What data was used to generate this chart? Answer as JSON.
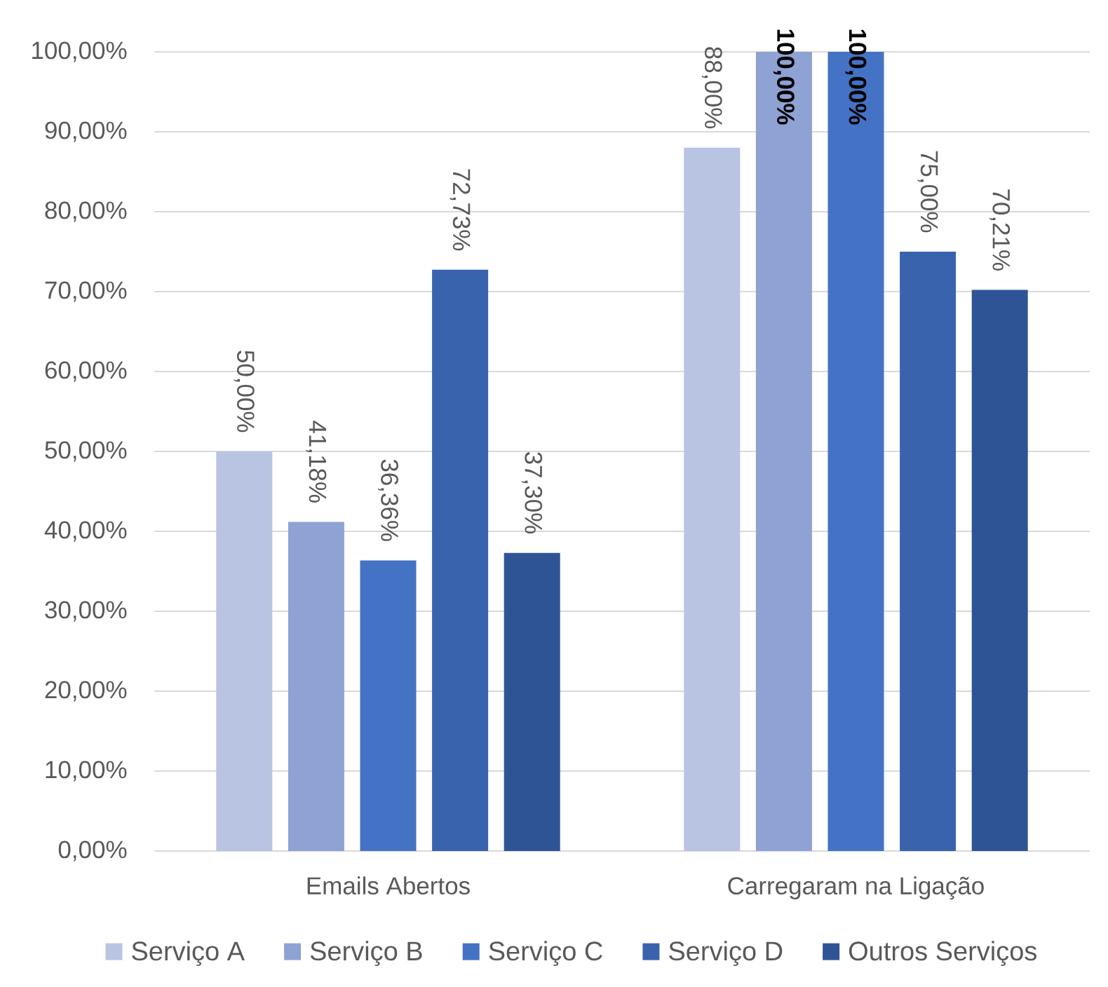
{
  "chart_data": {
    "type": "bar",
    "categories": [
      "Emails Abertos",
      "Carregaram na Ligação"
    ],
    "series": [
      {
        "name": "Serviço A",
        "color": "#b9c4e3",
        "values": [
          50.0,
          88.0
        ],
        "value_labels": [
          "50,00%",
          "88,00%"
        ]
      },
      {
        "name": "Serviço B",
        "color": "#8fa2d4",
        "values": [
          41.18,
          100.0
        ],
        "value_labels": [
          "41,18%",
          "100,00%"
        ]
      },
      {
        "name": "Serviço C",
        "color": "#4472c4",
        "values": [
          36.36,
          100.0
        ],
        "value_labels": [
          "36,36%",
          "100,00%"
        ]
      },
      {
        "name": "Serviço D",
        "color": "#3a63ad",
        "values": [
          72.73,
          75.0
        ],
        "value_labels": [
          "72,73%",
          "75,00%"
        ]
      },
      {
        "name": "Outros Serviços",
        "color": "#2f5496",
        "values": [
          37.3,
          70.21
        ],
        "value_labels": [
          "37,30%",
          "70,21%"
        ]
      }
    ],
    "ylim": [
      0,
      100
    ],
    "yticks": [
      {
        "value": 0,
        "label": "0,00%"
      },
      {
        "value": 10,
        "label": "10,00%"
      },
      {
        "value": 20,
        "label": "20,00%"
      },
      {
        "value": 30,
        "label": "30,00%"
      },
      {
        "value": 40,
        "label": "40,00%"
      },
      {
        "value": 50,
        "label": "50,00%"
      },
      {
        "value": 60,
        "label": "60,00%"
      },
      {
        "value": 70,
        "label": "70,00%"
      },
      {
        "value": 80,
        "label": "80,00%"
      },
      {
        "value": 90,
        "label": "90,00%"
      },
      {
        "value": 100,
        "label": "100,00%"
      }
    ],
    "grid": "y",
    "legend": "bottom"
  }
}
